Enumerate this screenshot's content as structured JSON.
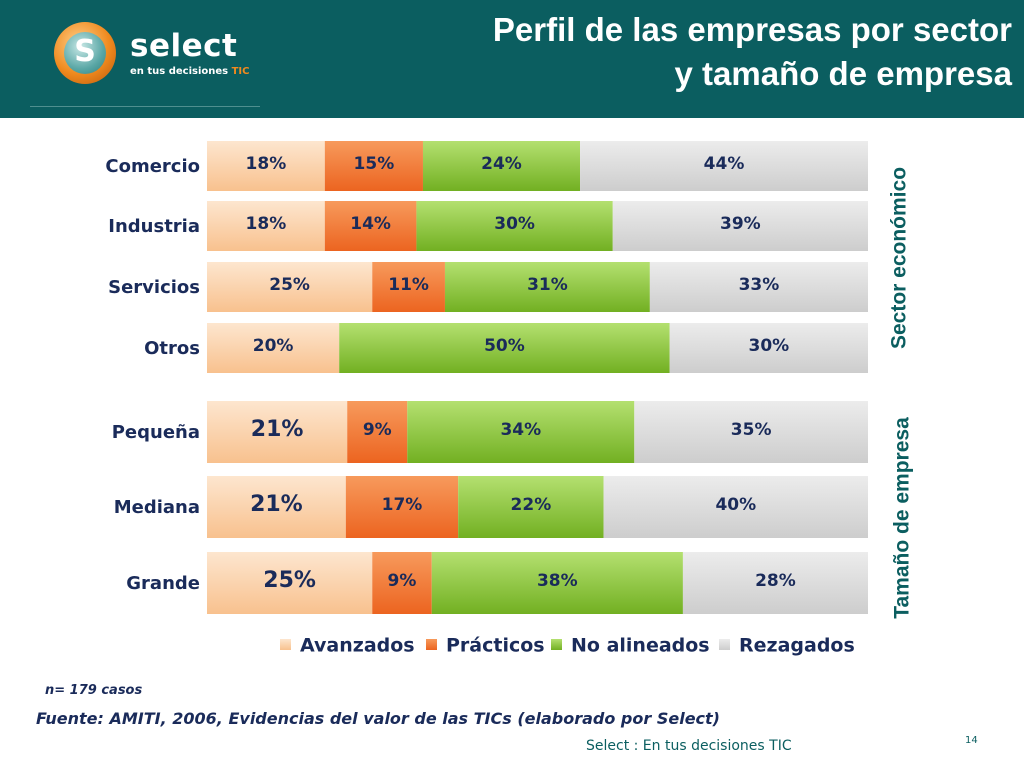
{
  "header": {
    "title_line1": "Perfil de las empresas por sector",
    "title_line2": "y tamaño de empresa",
    "brand": "select",
    "brand_sub": "en tus decisiones",
    "brand_sub_accent": "TIC",
    "logo_letter": "S"
  },
  "colors": {
    "header_bg": "#0b5e60",
    "avanzados": "#fcd3ad",
    "practicos": "#f4793a",
    "no_alineados": "#8ec62f",
    "rezagados": "#d9d9d9",
    "text": "#1a2b5a"
  },
  "chart_data": {
    "type": "bar",
    "orientation": "horizontal",
    "stacked": "percent",
    "groups": [
      {
        "axis_title": "Sector económico",
        "categories": [
          "Comercio",
          "Industria",
          "Servicios",
          "Otros"
        ]
      },
      {
        "axis_title": "Tamaño de empresa",
        "categories": [
          "Pequeña",
          "Mediana",
          "Grande"
        ]
      }
    ],
    "categories": [
      "Comercio",
      "Industria",
      "Servicios",
      "Otros",
      "Pequeña",
      "Mediana",
      "Grande"
    ],
    "series": [
      {
        "name": "Avanzados",
        "values": [
          18,
          18,
          25,
          20,
          21,
          21,
          25
        ],
        "labels": [
          "18%",
          "18%",
          "25%",
          "20%",
          "21%",
          "21%",
          "25%"
        ]
      },
      {
        "name": "Prácticos",
        "values": [
          15,
          14,
          11,
          0,
          9,
          17,
          9
        ],
        "labels": [
          "15%",
          "14%",
          "11%",
          "",
          "9%",
          "17%",
          "9%"
        ]
      },
      {
        "name": "No alineados",
        "values": [
          24,
          30,
          31,
          50,
          34,
          22,
          38
        ],
        "labels": [
          "24%",
          "30%",
          "31%",
          "50%",
          "34%",
          "22%",
          "38%"
        ]
      },
      {
        "name": "Rezagados",
        "values": [
          44,
          39,
          33,
          30,
          35,
          40,
          28
        ],
        "labels": [
          "44%",
          "39%",
          "33%",
          "30%",
          "35%",
          "40%",
          "28%"
        ]
      }
    ],
    "legend_position": "bottom",
    "grid": false
  },
  "note": "n= 179 casos",
  "source": "Fuente: AMITI, 2006, Evidencias del valor de las TICs (elaborado por Select)",
  "footer": "Select  : En tus decisiones TIC",
  "page_number": "14"
}
